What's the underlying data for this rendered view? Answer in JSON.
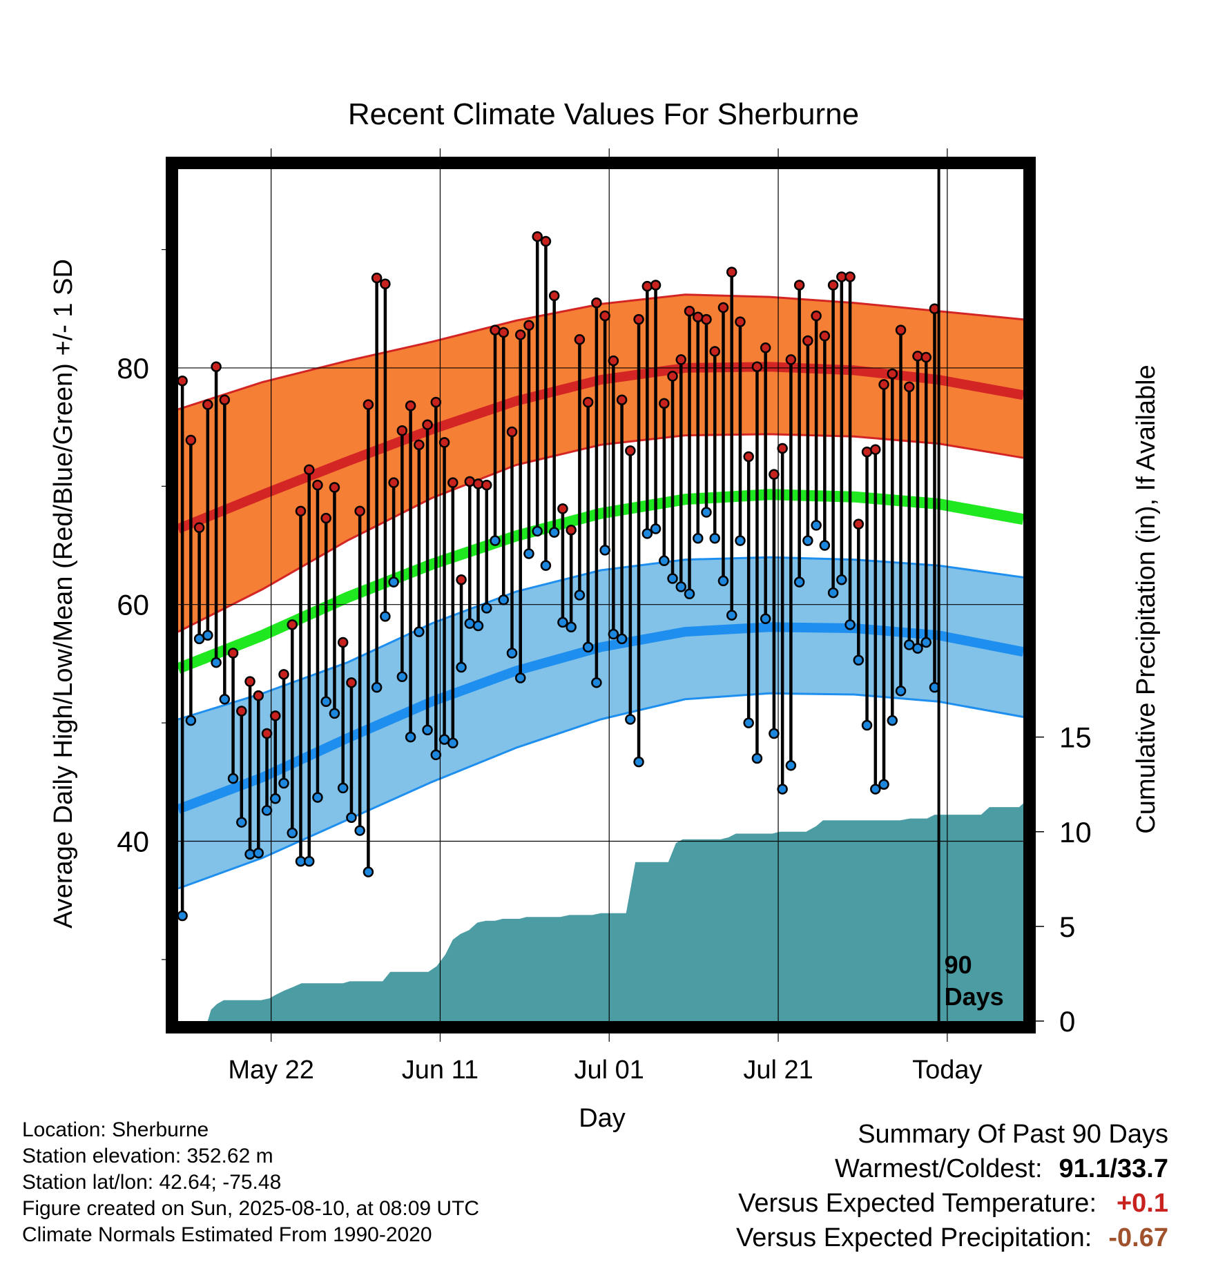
{
  "chart_data": {
    "type": "line",
    "title": "Recent Climate Values For Sherburne",
    "xlabel": "Day",
    "ylabel_left": "Average Daily High/Low/Mean (Red/Blue/Green) +/- 1 SD",
    "ylabel_right": "Cumulative Precipitation (in), If Available",
    "x_ticks": [
      {
        "day": 11,
        "label": "May 22"
      },
      {
        "day": 31,
        "label": "Jun 11"
      },
      {
        "day": 51,
        "label": "Jul 01"
      },
      {
        "day": 71,
        "label": "Jul 21"
      },
      {
        "day": 91,
        "label": "Today"
      }
    ],
    "xlim": [
      0,
      100
    ],
    "ylim_left": [
      24.8,
      96.8
    ],
    "y_ticks_left": [
      "40",
      "60",
      "80"
    ],
    "y_minor_ticks_left": [
      30,
      50,
      70,
      90
    ],
    "ylim_right": [
      0,
      45
    ],
    "y_ticks_right": [
      "0",
      "5",
      "10",
      "15"
    ],
    "today_day": 90,
    "today_label": [
      "90",
      "Days"
    ],
    "grid": true,
    "normal_high": {
      "x": [
        0,
        10,
        20,
        30,
        40,
        50,
        60,
        70,
        80,
        90,
        100
      ],
      "mean": [
        66.4,
        69.3,
        72.1,
        74.8,
        77.2,
        79.0,
        80.0,
        80.1,
        79.8,
        79.0,
        77.7
      ],
      "upper": [
        76.5,
        78.8,
        80.6,
        82.2,
        84.0,
        85.4,
        86.2,
        86.0,
        85.5,
        84.8,
        84.1
      ],
      "lower": [
        57.7,
        61.3,
        65.4,
        69.0,
        71.8,
        73.5,
        74.3,
        74.4,
        74.2,
        73.6,
        72.4
      ]
    },
    "normal_mean": {
      "x": [
        0,
        10,
        20,
        30,
        40,
        50,
        60,
        70,
        80,
        90,
        100
      ],
      "values": [
        54.6,
        57.4,
        60.6,
        63.4,
        65.8,
        67.7,
        68.9,
        69.3,
        69.1,
        68.5,
        67.2
      ]
    },
    "normal_low": {
      "x": [
        0,
        10,
        20,
        30,
        40,
        50,
        60,
        70,
        80,
        90,
        100
      ],
      "mean": [
        42.7,
        45.4,
        48.7,
        51.8,
        54.4,
        56.4,
        57.7,
        58.1,
        58.0,
        57.4,
        56.0
      ],
      "upper": [
        50.3,
        52.5,
        55.1,
        58.4,
        61.1,
        62.9,
        63.8,
        64.0,
        63.8,
        63.3,
        62.3
      ],
      "lower": [
        36.0,
        38.6,
        41.8,
        45.0,
        47.9,
        50.3,
        52.0,
        52.5,
        52.4,
        51.8,
        50.5
      ]
    },
    "series": [
      {
        "name": "High",
        "x": [
          0,
          1,
          2,
          3,
          4,
          5,
          6,
          7,
          8,
          9,
          10,
          11,
          12,
          13,
          14,
          15,
          16,
          17,
          18,
          19,
          20,
          21,
          22,
          23,
          24,
          25,
          26,
          27,
          28,
          29,
          30,
          31,
          32,
          33,
          34,
          35,
          36,
          37,
          38,
          39,
          40,
          41,
          42,
          43,
          44,
          45,
          46,
          47,
          48,
          49,
          50,
          51,
          52,
          53,
          54,
          55,
          56,
          57,
          58,
          59,
          60,
          61,
          62,
          63,
          64,
          65,
          66,
          67,
          68,
          69,
          70,
          71,
          72,
          73,
          74,
          75,
          76,
          77,
          78,
          79,
          80,
          81,
          82,
          83,
          84,
          85,
          86,
          87,
          88,
          89
        ],
        "values": [
          78.9,
          73.9,
          66.5,
          76.9,
          80.1,
          77.3,
          55.9,
          51.0,
          53.5,
          52.3,
          49.1,
          50.6,
          54.1,
          58.3,
          67.9,
          71.4,
          70.1,
          67.3,
          69.9,
          56.8,
          53.4,
          67.9,
          76.9,
          87.6,
          87.1,
          70.3,
          74.7,
          76.8,
          73.5,
          75.2,
          77.1,
          73.7,
          70.3,
          62.1,
          70.4,
          70.2,
          70.1,
          83.2,
          83.0,
          74.6,
          82.8,
          83.6,
          91.1,
          90.7,
          86.1,
          68.1,
          66.3,
          82.4,
          77.1,
          85.5,
          84.4,
          80.6,
          77.3,
          73.0,
          84.1,
          86.9,
          87.0,
          77.0,
          79.3,
          80.7,
          84.8,
          84.3,
          84.1,
          81.4,
          85.1,
          88.1,
          83.9,
          72.5,
          80.1,
          81.7,
          71.0,
          73.2,
          80.7,
          87.0,
          82.3,
          84.4,
          82.7,
          87.0,
          87.7,
          87.7,
          66.8,
          72.9,
          73.1,
          78.6,
          79.5,
          83.2,
          78.4,
          81.0,
          80.9,
          85.0
        ]
      },
      {
        "name": "Low",
        "x": [
          0,
          1,
          2,
          3,
          4,
          5,
          6,
          7,
          8,
          9,
          10,
          11,
          12,
          13,
          14,
          15,
          16,
          17,
          18,
          19,
          20,
          21,
          22,
          23,
          24,
          25,
          26,
          27,
          28,
          29,
          30,
          31,
          32,
          33,
          34,
          35,
          36,
          37,
          38,
          39,
          40,
          41,
          42,
          43,
          44,
          45,
          46,
          47,
          48,
          49,
          50,
          51,
          52,
          53,
          54,
          55,
          56,
          57,
          58,
          59,
          60,
          61,
          62,
          63,
          64,
          65,
          66,
          67,
          68,
          69,
          70,
          71,
          72,
          73,
          74,
          75,
          76,
          77,
          78,
          79,
          80,
          81,
          82,
          83,
          84,
          85,
          86,
          87,
          88,
          89
        ],
        "values": [
          33.7,
          50.2,
          57.1,
          57.4,
          55.1,
          52.0,
          45.3,
          41.6,
          38.9,
          39.0,
          42.6,
          43.6,
          44.9,
          40.7,
          38.3,
          38.3,
          43.7,
          51.8,
          50.8,
          44.5,
          42.0,
          40.9,
          37.4,
          53.0,
          59.0,
          61.9,
          53.9,
          48.8,
          57.7,
          49.4,
          47.3,
          48.6,
          48.3,
          54.7,
          58.4,
          58.2,
          59.7,
          65.4,
          60.4,
          55.9,
          53.8,
          64.3,
          66.2,
          63.3,
          66.1,
          58.5,
          58.1,
          60.8,
          56.4,
          53.4,
          64.6,
          57.5,
          57.1,
          50.3,
          46.7,
          66.0,
          66.4,
          63.7,
          62.2,
          61.5,
          60.9,
          65.6,
          67.8,
          65.6,
          62.0,
          59.1,
          65.4,
          50.0,
          47.0,
          58.8,
          49.1,
          44.4,
          46.4,
          61.9,
          65.4,
          66.7,
          65.0,
          61.0,
          62.1,
          58.3,
          55.3,
          49.8,
          44.4,
          44.8,
          50.2,
          52.7,
          56.6,
          56.3,
          56.8,
          53.0
        ]
      }
    ],
    "precipitation": {
      "x": [
        3.5,
        3.9,
        4.6,
        5.4,
        6.2,
        7.2,
        8.0,
        8.8,
        9.8,
        10.8,
        11.6,
        12.5,
        13.6,
        14.6,
        15.5,
        16.5,
        17.6,
        18.6,
        19.5,
        20.3,
        21.2,
        22.3,
        23.2,
        24.2,
        25.1,
        26.0,
        26.8,
        27.7,
        28.6,
        29.6,
        30.6,
        31.6,
        32.5,
        33.4,
        34.4,
        35.4,
        36.4,
        37.5,
        38.4,
        39.2,
        40.4,
        41.2,
        41.4,
        41.6,
        42.4,
        43.8,
        44.5,
        45.2,
        46.3,
        47.2,
        47.9,
        49.0,
        50.0,
        51.0,
        52.0,
        53.0,
        54.1,
        55.2,
        56.0,
        57.0,
        58.0,
        58.9,
        59.7,
        60.5,
        61.2,
        62.0,
        63.2,
        64.2,
        65.1,
        66.0,
        67.2,
        68.0,
        69.1,
        70.3,
        71.2,
        71.9,
        73.3,
        74.3,
        75.5,
        76.3,
        77.4,
        78.3,
        79.3,
        80.2,
        80.7,
        81.1,
        81.7,
        82.5,
        83.4,
        84.3,
        85.4,
        86.6,
        87.6,
        88.6,
        89.5,
        90.3,
        91.2,
        92.1,
        93.0,
        94.0,
        95.0,
        96.0,
        97.0,
        98.0,
        99.5,
        100
      ],
      "values": [
        0,
        0.6,
        0.9,
        1.1,
        1.1,
        1.1,
        1.1,
        1.1,
        1.1,
        1.2,
        1.4,
        1.6,
        1.8,
        2.0,
        2.0,
        2.0,
        2.0,
        2.0,
        2.0,
        2.1,
        2.1,
        2.1,
        2.1,
        2.1,
        2.6,
        2.6,
        2.6,
        2.6,
        2.6,
        2.6,
        2.9,
        3.5,
        4.3,
        4.6,
        4.8,
        5.2,
        5.3,
        5.3,
        5.4,
        5.4,
        5.4,
        5.5,
        5.5,
        5.5,
        5.5,
        5.5,
        5.5,
        5.5,
        5.6,
        5.6,
        5.6,
        5.6,
        5.7,
        5.7,
        5.7,
        5.7,
        8.4,
        8.4,
        8.4,
        8.4,
        8.4,
        9.4,
        9.6,
        9.6,
        9.6,
        9.6,
        9.6,
        9.6,
        9.7,
        9.9,
        9.9,
        9.9,
        9.9,
        9.9,
        10.0,
        10.0,
        10.0,
        10.0,
        10.3,
        10.6,
        10.6,
        10.6,
        10.6,
        10.6,
        10.6,
        10.6,
        10.6,
        10.6,
        10.6,
        10.6,
        10.6,
        10.7,
        10.7,
        10.7,
        10.9,
        10.9,
        10.9,
        10.9,
        10.9,
        10.9,
        10.9,
        11.3,
        11.3,
        11.3,
        11.3,
        11.5
      ]
    },
    "colors": {
      "high_band": "#f57f35",
      "high_mean": "#d42525",
      "low_band": "#82c1e8",
      "low_mean": "#1e8fef",
      "mean": "#20e820",
      "precip": "#4b9ca3",
      "high_dot": "#c8221f",
      "low_dot": "#1d87de"
    }
  },
  "metadata": {
    "location": "Location: Sherburne",
    "elevation": "Station elevation: 352.62 m",
    "latlon": "Station lat/lon: 42.64; -75.48",
    "created": "Figure created on Sun, 2025-08-10, at 08:09 UTC",
    "normals": "Climate Normals Estimated From 1990-2020"
  },
  "summary": {
    "title": "Summary Of Past 90 Days",
    "warm_cold_label": "Warmest/Coldest:",
    "warm_cold_value": "91.1/33.7",
    "temp_label": "Versus Expected Temperature:",
    "temp_value": "+0.1",
    "temp_color": "#c8221f",
    "precip_label": "Versus Expected Precipitation:",
    "precip_value": "-0.67",
    "precip_color": "#a0522d"
  }
}
